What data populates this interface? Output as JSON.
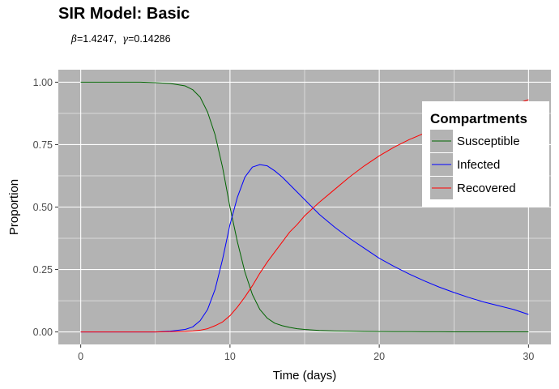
{
  "header": {
    "title": "SIR Model: Basic",
    "beta_symbol": "β",
    "beta_value": "=1.4247,",
    "gamma_symbol": "γ",
    "gamma_value": "=0.14286"
  },
  "colors": {
    "panel_bg": "#b3b3b3",
    "grid": "#ffffff",
    "susceptible": "#006400",
    "infected": "#0000ff",
    "recovered": "#ff0000"
  },
  "chart_data": {
    "type": "line",
    "title": "SIR Model: Basic",
    "xlabel": "Time (days)",
    "ylabel": "Proportion",
    "xlim": [
      -1.5,
      31.5
    ],
    "ylim": [
      -0.05,
      1.05
    ],
    "xticks": [
      0,
      10,
      20,
      30
    ],
    "xtick_labels": [
      "0",
      "10",
      "20",
      "30"
    ],
    "yticks": [
      0,
      0.25,
      0.5,
      0.75,
      1
    ],
    "ytick_labels": [
      "0.00",
      "0.25",
      "0.50",
      "0.75",
      "1.00"
    ],
    "grid": true,
    "legend": {
      "title": "Compartments",
      "position": "right"
    },
    "x": [
      0,
      2,
      4,
      5,
      6,
      7,
      7.5,
      8,
      8.5,
      9,
      9.5,
      10,
      10.5,
      11,
      11.5,
      12,
      12.5,
      13,
      13.5,
      14,
      14.5,
      15,
      16,
      17,
      18,
      19,
      20,
      21,
      22,
      23,
      24,
      25,
      26,
      27,
      28,
      29,
      30
    ],
    "series": [
      {
        "name": "Susceptible",
        "color": "#006400",
        "values": [
          1.0,
          1.0,
          1.0,
          0.998,
          0.995,
          0.985,
          0.97,
          0.94,
          0.88,
          0.79,
          0.66,
          0.5,
          0.36,
          0.24,
          0.15,
          0.09,
          0.055,
          0.035,
          0.025,
          0.018,
          0.013,
          0.01,
          0.006,
          0.004,
          0.003,
          0.002,
          0.0015,
          0.001,
          0.001,
          0.0008,
          0.0006,
          0.0005,
          0.0004,
          0.0003,
          0.0002,
          0.0002,
          0.0001
        ]
      },
      {
        "name": "Infected",
        "color": "#0000ff",
        "values": [
          0.0,
          0.0,
          0.0,
          0.0,
          0.003,
          0.01,
          0.02,
          0.045,
          0.09,
          0.17,
          0.29,
          0.43,
          0.54,
          0.62,
          0.66,
          0.67,
          0.665,
          0.645,
          0.62,
          0.59,
          0.56,
          0.53,
          0.47,
          0.42,
          0.375,
          0.335,
          0.295,
          0.262,
          0.232,
          0.205,
          0.18,
          0.158,
          0.138,
          0.12,
          0.105,
          0.09,
          0.07
        ]
      },
      {
        "name": "Recovered",
        "color": "#ff0000",
        "values": [
          0.0,
          0.0,
          0.0,
          0.0,
          0.001,
          0.002,
          0.004,
          0.007,
          0.013,
          0.025,
          0.04,
          0.065,
          0.1,
          0.14,
          0.185,
          0.235,
          0.28,
          0.32,
          0.36,
          0.4,
          0.43,
          0.465,
          0.52,
          0.57,
          0.62,
          0.665,
          0.705,
          0.74,
          0.77,
          0.795,
          0.82,
          0.842,
          0.862,
          0.88,
          0.895,
          0.91,
          0.93
        ]
      }
    ]
  }
}
